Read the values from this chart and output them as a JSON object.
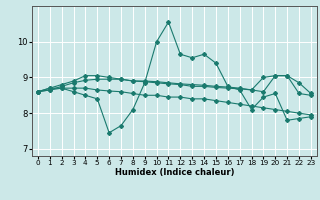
{
  "title": "",
  "xlabel": "Humidex (Indice chaleur)",
  "background_color": "#cce8e8",
  "line_color": "#1a7a6e",
  "grid_color": "#ffffff",
  "xlim": [
    -0.5,
    23.5
  ],
  "ylim": [
    6.8,
    11.0
  ],
  "yticks": [
    7,
    8,
    9,
    10
  ],
  "xticks": [
    0,
    1,
    2,
    3,
    4,
    5,
    6,
    7,
    8,
    9,
    10,
    11,
    12,
    13,
    14,
    15,
    16,
    17,
    18,
    19,
    20,
    21,
    22,
    23
  ],
  "series": [
    [
      8.6,
      8.7,
      8.7,
      8.6,
      8.5,
      8.4,
      7.45,
      7.65,
      8.1,
      8.85,
      10.0,
      10.55,
      9.65,
      9.55,
      9.65,
      9.4,
      8.75,
      8.65,
      8.1,
      8.45,
      8.55,
      7.8,
      7.85,
      7.9
    ],
    [
      8.6,
      8.65,
      8.7,
      8.7,
      8.7,
      8.65,
      8.62,
      8.6,
      8.55,
      8.5,
      8.5,
      8.45,
      8.45,
      8.4,
      8.4,
      8.35,
      8.3,
      8.25,
      8.2,
      8.15,
      8.1,
      8.05,
      8.0,
      7.95
    ],
    [
      8.6,
      8.65,
      8.75,
      8.85,
      8.92,
      8.95,
      8.95,
      8.95,
      8.9,
      8.9,
      8.88,
      8.85,
      8.82,
      8.8,
      8.78,
      8.75,
      8.73,
      8.7,
      8.65,
      8.6,
      9.05,
      9.05,
      8.85,
      8.55
    ],
    [
      8.6,
      8.7,
      8.8,
      8.9,
      9.05,
      9.05,
      9.0,
      8.95,
      8.9,
      8.88,
      8.85,
      8.82,
      8.8,
      8.75,
      8.75,
      8.72,
      8.7,
      8.68,
      8.65,
      9.0,
      9.05,
      9.05,
      8.55,
      8.5
    ]
  ],
  "xlabel_fontsize": 6.0,
  "xlabel_fontweight": "bold",
  "ytick_fontsize": 6.0,
  "xtick_fontsize": 5.2
}
